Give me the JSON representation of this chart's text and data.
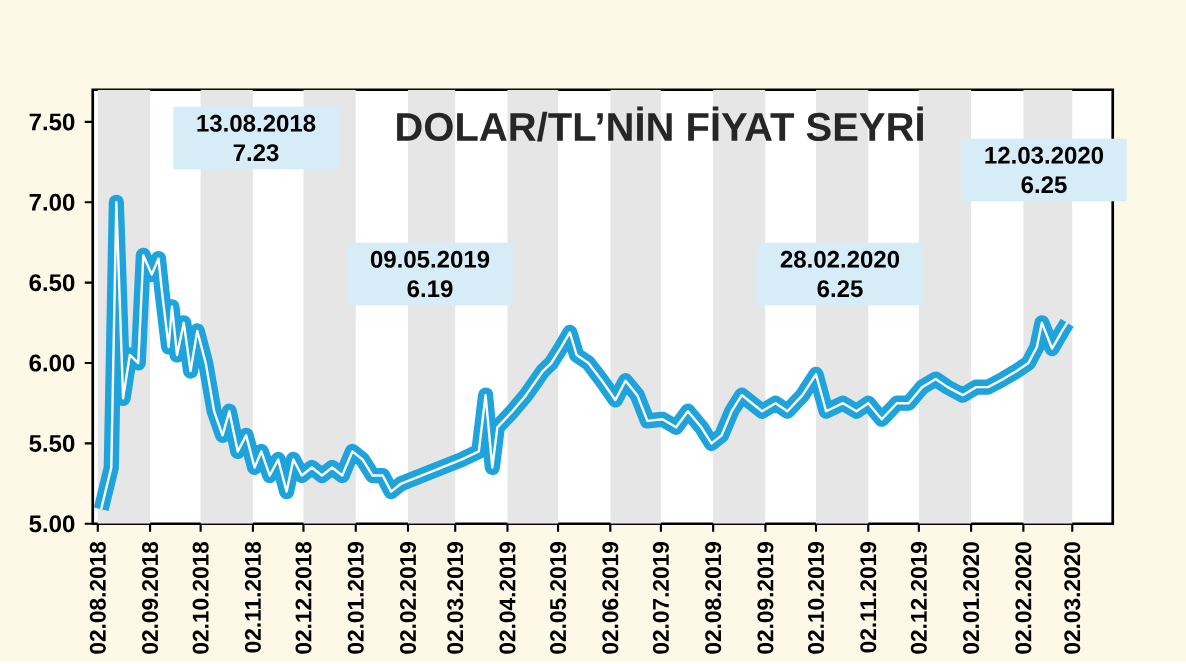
{
  "chart_data": {
    "type": "line",
    "title": "DOLAR/TL’NİN FİYAT SEYRİ",
    "annotations": [
      "13.08.2018 7.23",
      "09.05.2019 6.19",
      "28.02.2020 6.25",
      "12.03.2020 6.25"
    ],
    "xlim": [
      "2018-07-30",
      "2020-03-26"
    ],
    "ylim": [
      5,
      7.7
    ],
    "xticks": [
      {
        "value": "2018-08-02",
        "label": "02.08.2018"
      },
      {
        "value": "2018-09-02",
        "label": "02.09.2018"
      },
      {
        "value": "2018-10-02",
        "label": "02.10.2018"
      },
      {
        "value": "2018-11-02",
        "label": "02.11.2018"
      },
      {
        "value": "2018-12-02",
        "label": "02.12.2018"
      },
      {
        "value": "2019-01-02",
        "label": "02.01.2019"
      },
      {
        "value": "2019-02-02",
        "label": "02.02.2019"
      },
      {
        "value": "2019-03-02",
        "label": "02.03.2019"
      },
      {
        "value": "2019-04-02",
        "label": "02.04.2019"
      },
      {
        "value": "2019-05-02",
        "label": "02.05.2019"
      },
      {
        "value": "2019-06-02",
        "label": "02.06.2019"
      },
      {
        "value": "2019-07-02",
        "label": "02.07.2019"
      },
      {
        "value": "2019-08-02",
        "label": "02.08.2019"
      },
      {
        "value": "2019-09-02",
        "label": "02.09.2019"
      },
      {
        "value": "2019-10-02",
        "label": "02.10.2019"
      },
      {
        "value": "2019-11-02",
        "label": "02.11.2019"
      },
      {
        "value": "2019-12-02",
        "label": "02.12.2019"
      },
      {
        "value": "2020-01-02",
        "label": "02.01.2020"
      },
      {
        "value": "2020-02-02",
        "label": "02.02.2020"
      },
      {
        "value": "2020-03-02",
        "label": "02.03.2020"
      }
    ],
    "yticks": [
      {
        "value": 5,
        "label": "5.00"
      },
      {
        "value": 5.5,
        "label": "5.50"
      },
      {
        "value": 6,
        "label": "6.00"
      },
      {
        "value": 6.5,
        "label": "6.50"
      },
      {
        "value": 7,
        "label": "7.00"
      },
      {
        "value": 7.5,
        "label": "7.50"
      }
    ],
    "marker": "none",
    "bands": [
      {
        "axis": "x",
        "from": "2018-08-02",
        "to": "2018-09-02",
        "color": "#e6e6e6"
      },
      {
        "axis": "x",
        "from": "2018-10-02",
        "to": "2018-11-02",
        "color": "#e6e6e6"
      },
      {
        "axis": "x",
        "from": "2018-12-02",
        "to": "2019-01-02",
        "color": "#e6e6e6"
      },
      {
        "axis": "x",
        "from": "2019-02-02",
        "to": "2019-03-02",
        "color": "#e6e6e6"
      },
      {
        "axis": "x",
        "from": "2019-04-02",
        "to": "2019-05-02",
        "color": "#e6e6e6"
      },
      {
        "axis": "x",
        "from": "2019-06-02",
        "to": "2019-07-02",
        "color": "#e6e6e6"
      },
      {
        "axis": "x",
        "from": "2019-08-02",
        "to": "2019-09-02",
        "color": "#e6e6e6"
      },
      {
        "axis": "x",
        "from": "2019-10-02",
        "to": "2019-11-02",
        "color": "#e6e6e6"
      },
      {
        "axis": "x",
        "from": "2019-12-02",
        "to": "2020-01-02",
        "color": "#e6e6e6"
      },
      {
        "axis": "x",
        "from": "2020-02-02",
        "to": "2020-03-02",
        "color": "#e6e6e6"
      }
    ],
    "series": [
      {
        "color": "#1fa3dc",
        "x": [
          "2018-08-04",
          "2018-08-10",
          "2018-08-13",
          "2018-08-17",
          "2018-08-21",
          "2018-08-26",
          "2018-08-29",
          "2018-09-03",
          "2018-09-07",
          "2018-09-09",
          "2018-09-13",
          "2018-09-15",
          "2018-09-18",
          "2018-09-22",
          "2018-09-26",
          "2018-09-30",
          "2018-10-05",
          "2018-10-10",
          "2018-10-15",
          "2018-10-19",
          "2018-10-24",
          "2018-10-29",
          "2018-11-03",
          "2018-11-07",
          "2018-11-12",
          "2018-11-17",
          "2018-11-22",
          "2018-11-26",
          "2018-12-01",
          "2018-12-07",
          "2018-12-13",
          "2018-12-19",
          "2018-12-25",
          "2018-12-31",
          "2019-01-06",
          "2019-01-12",
          "2019-01-18",
          "2019-01-23",
          "2019-01-29",
          "2019-02-10",
          "2019-02-22",
          "2019-03-06",
          "2019-03-16",
          "2019-03-20",
          "2019-03-24",
          "2019-03-27",
          "2019-04-05",
          "2019-04-13",
          "2019-04-23",
          "2019-04-28",
          "2019-05-04",
          "2019-05-09",
          "2019-05-13",
          "2019-05-20",
          "2019-05-28",
          "2019-06-05",
          "2019-06-11",
          "2019-06-18",
          "2019-06-24",
          "2019-07-03",
          "2019-07-11",
          "2019-07-18",
          "2019-07-26",
          "2019-08-01",
          "2019-08-07",
          "2019-08-13",
          "2019-08-19",
          "2019-08-25",
          "2019-08-31",
          "2019-09-08",
          "2019-09-15",
          "2019-09-24",
          "2019-10-02",
          "2019-10-08",
          "2019-10-18",
          "2019-10-26",
          "2019-11-02",
          "2019-11-10",
          "2019-11-19",
          "2019-11-26",
          "2019-12-04",
          "2019-12-12",
          "2019-12-19",
          "2019-12-28",
          "2020-01-05",
          "2020-01-12",
          "2020-01-21",
          "2020-01-29",
          "2020-02-05",
          "2020-02-10",
          "2020-02-13",
          "2020-02-19",
          "2020-02-25",
          "2020-02-28"
        ],
        "values": [
          5.09,
          5.35,
          7.0,
          5.78,
          6.05,
          6.0,
          6.67,
          6.55,
          6.65,
          6.45,
          6.1,
          6.35,
          6.05,
          6.25,
          5.95,
          6.2,
          6.0,
          5.7,
          5.55,
          5.7,
          5.45,
          5.55,
          5.35,
          5.45,
          5.3,
          5.4,
          5.2,
          5.4,
          5.3,
          5.35,
          5.3,
          5.35,
          5.3,
          5.45,
          5.4,
          5.3,
          5.3,
          5.2,
          5.25,
          5.3,
          5.35,
          5.4,
          5.45,
          5.8,
          5.35,
          5.6,
          5.7,
          5.8,
          5.95,
          6.0,
          6.1,
          6.19,
          6.05,
          6.0,
          5.89,
          5.77,
          5.89,
          5.8,
          5.64,
          5.65,
          5.6,
          5.7,
          5.6,
          5.5,
          5.55,
          5.7,
          5.8,
          5.75,
          5.7,
          5.75,
          5.7,
          5.8,
          5.93,
          5.7,
          5.75,
          5.7,
          5.75,
          5.65,
          5.75,
          5.75,
          5.85,
          5.9,
          5.85,
          5.8,
          5.85,
          5.85,
          5.9,
          5.95,
          6.0,
          6.1,
          6.25,
          6.09,
          6.2,
          6.25
        ]
      }
    ]
  }
}
